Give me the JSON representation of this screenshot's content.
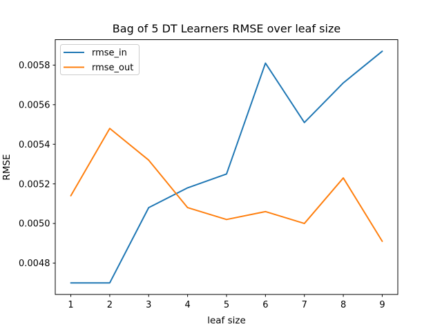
{
  "chart_data": {
    "type": "line",
    "title": "Bag of 5 DT Learners RMSE over leaf size",
    "xlabel": "leaf size",
    "ylabel": "RMSE",
    "x": [
      1,
      2,
      3,
      4,
      5,
      6,
      7,
      8,
      9
    ],
    "series": [
      {
        "name": "rmse_in",
        "color": "#1f77b4",
        "values": [
          0.0047,
          0.0047,
          0.00508,
          0.00518,
          0.00525,
          0.00581,
          0.00551,
          0.00571,
          0.00587
        ]
      },
      {
        "name": "rmse_out",
        "color": "#ff7f0e",
        "values": [
          0.00514,
          0.00548,
          0.00532,
          0.00508,
          0.00502,
          0.00506,
          0.005,
          0.00523,
          0.00491
        ]
      }
    ],
    "x_ticks": {
      "values": [
        1,
        2,
        3,
        4,
        5,
        6,
        7,
        8,
        9
      ],
      "labels": [
        "1",
        "2",
        "3",
        "4",
        "5",
        "6",
        "7",
        "8",
        "9"
      ]
    },
    "y_ticks": {
      "values": [
        0.0048,
        0.005,
        0.0052,
        0.0054,
        0.0056,
        0.0058
      ],
      "labels": [
        "0.0048",
        "0.0050",
        "0.0052",
        "0.0054",
        "0.0056",
        "0.0058"
      ]
    },
    "xlim": [
      0.6,
      9.4
    ],
    "ylim": [
      0.0046415,
      0.0059285
    ],
    "grid": false,
    "legend": {
      "position": "upper left",
      "entries": [
        "rmse_in",
        "rmse_out"
      ]
    },
    "colors": {
      "spine": "#000000",
      "legend_border": "#cccccc",
      "background": "#ffffff"
    }
  }
}
